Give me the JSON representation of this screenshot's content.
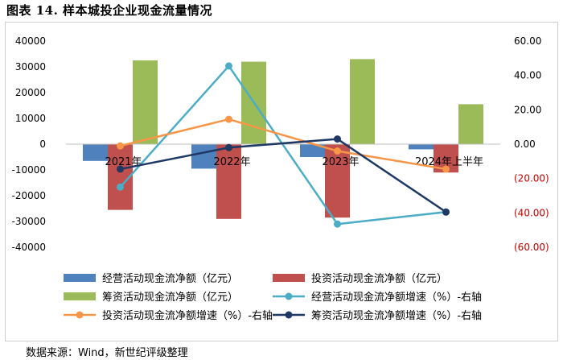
{
  "figure": {
    "title": "图表 14. 样本城投企业现金流量情况",
    "source": "数据来源：Wind，新世纪评级整理"
  },
  "chart_data": {
    "type": "bar+line",
    "categories": [
      "2021年",
      "2022年",
      "2023年",
      "2024年上半年"
    ],
    "left_axis": {
      "ylim": [
        -40000,
        40000
      ],
      "ticks": [
        "40000",
        "30000",
        "20000",
        "10000",
        "0",
        "-10000",
        "-20000",
        "-30000",
        "-40000"
      ],
      "tick_values": [
        40000,
        30000,
        20000,
        10000,
        0,
        -10000,
        -20000,
        -30000,
        -40000
      ]
    },
    "right_axis": {
      "ylim": [
        -60,
        60
      ],
      "ticks": [
        "60.00",
        "40.00",
        "20.00",
        "0.00",
        "(20.00)",
        "(40.00)",
        "(60.00)"
      ],
      "tick_values": [
        60,
        40,
        20,
        0,
        -20,
        -40,
        -60
      ],
      "negative_color": "#c00000"
    },
    "bar_series": [
      {
        "name": "经营活动现金流净额（亿元）",
        "color": "#4f81bd",
        "values": [
          -6500,
          -9500,
          -5000,
          -2000
        ]
      },
      {
        "name": "投资活动现金流净额（亿元）",
        "color": "#c0504d",
        "values": [
          -25500,
          -29000,
          -28500,
          -11000
        ]
      },
      {
        "name": "筹资活动现金流净额（亿元）",
        "color": "#9bbb59",
        "values": [
          32500,
          32000,
          33000,
          15500
        ]
      }
    ],
    "line_series": [
      {
        "name": "经营活动现金流净额增速（%）-右轴",
        "color": "#4bacc6",
        "values": [
          -25,
          45.5,
          -46.5,
          -39.5
        ]
      },
      {
        "name": "投资活动现金流净额增速（%）-右轴",
        "color": "#f79646",
        "values": [
          -1,
          14.5,
          -4,
          -14.5
        ]
      },
      {
        "name": "筹资活动现金流净额增速（%）-右轴",
        "color": "#1f3864",
        "values": [
          -14.5,
          -2,
          3,
          -39.5
        ]
      }
    ],
    "legend_position": "bottom",
    "grid": false
  }
}
